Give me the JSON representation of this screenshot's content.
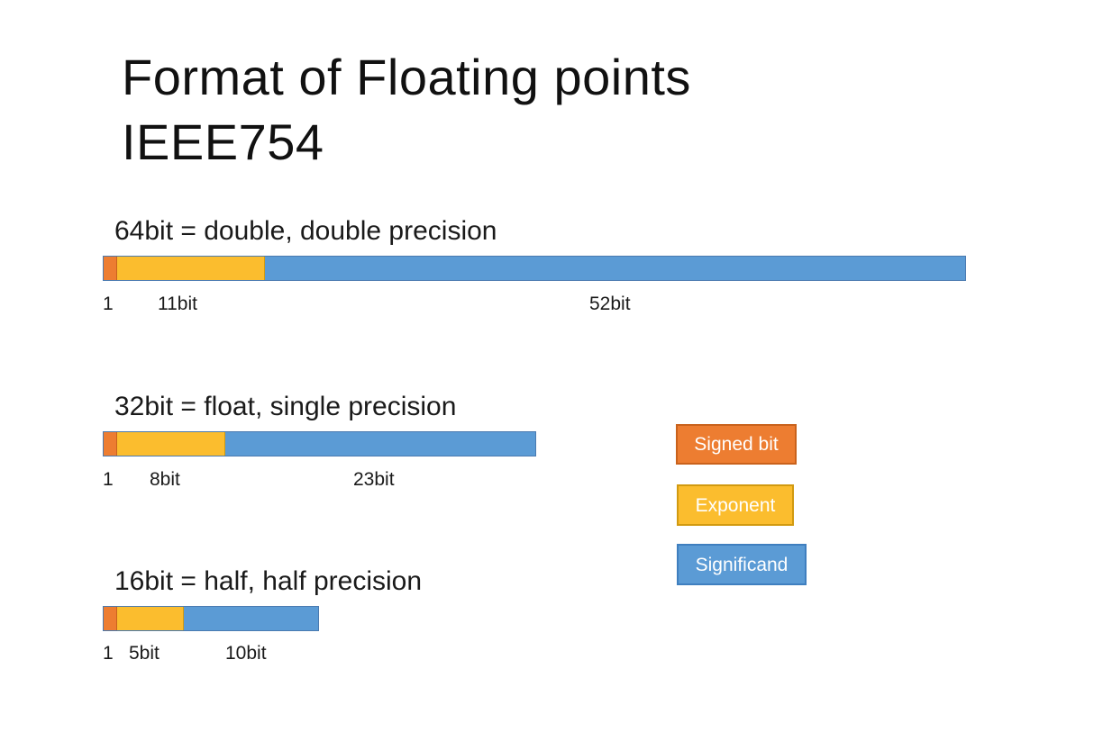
{
  "title": {
    "line1": "Format of Floating points",
    "line2": "IEEE754"
  },
  "formats": [
    {
      "heading": "64bit = double, double precision",
      "sign_label": "1",
      "exponent_label": "11bit",
      "significand_label": "52bit",
      "sign_bits": 1,
      "exponent_bits": 11,
      "significand_bits": 52
    },
    {
      "heading": "32bit = float, single precision",
      "sign_label": "1",
      "exponent_label": "8bit",
      "significand_label": "23bit",
      "sign_bits": 1,
      "exponent_bits": 8,
      "significand_bits": 23
    },
    {
      "heading": "16bit = half, half precision",
      "sign_label": "1",
      "exponent_label": "5bit",
      "significand_label": "10bit",
      "sign_bits": 1,
      "exponent_bits": 5,
      "significand_bits": 10
    }
  ],
  "legend": {
    "signed": "Signed bit",
    "exponent": "Exponent",
    "significand": "Significand"
  },
  "colors": {
    "signed": "#ed7d31",
    "exponent": "#fbbd2e",
    "significand": "#5b9bd5"
  }
}
